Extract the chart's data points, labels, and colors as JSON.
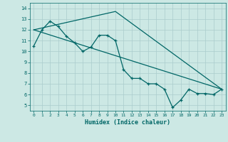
{
  "xlabel": "Humidex (Indice chaleur)",
  "xlim": [
    -0.5,
    23.5
  ],
  "ylim": [
    4.5,
    14.5
  ],
  "xticks": [
    0,
    1,
    2,
    3,
    4,
    5,
    6,
    7,
    8,
    9,
    10,
    11,
    12,
    13,
    14,
    15,
    16,
    17,
    18,
    19,
    20,
    21,
    22,
    23
  ],
  "yticks": [
    5,
    6,
    7,
    8,
    9,
    10,
    11,
    12,
    13,
    14
  ],
  "bg_color": "#cce8e4",
  "grid_color": "#aacccc",
  "line_color": "#006666",
  "line1_x": [
    0,
    1,
    2,
    3,
    4,
    5,
    6,
    7,
    8,
    9,
    10,
    11,
    12,
    13,
    14,
    15,
    16,
    17,
    18,
    19,
    20,
    21,
    22,
    23
  ],
  "line1_y": [
    10.5,
    12.0,
    12.8,
    12.3,
    11.4,
    10.8,
    10.0,
    10.4,
    11.5,
    11.5,
    11.0,
    8.3,
    7.5,
    7.5,
    7.0,
    7.0,
    6.5,
    4.8,
    5.5,
    6.5,
    6.1,
    6.1,
    6.0,
    6.5
  ],
  "line2_x": [
    0,
    23
  ],
  "line2_y": [
    12.0,
    6.5
  ],
  "line3_x": [
    0,
    10,
    23
  ],
  "line3_y": [
    12.0,
    13.7,
    6.5
  ]
}
